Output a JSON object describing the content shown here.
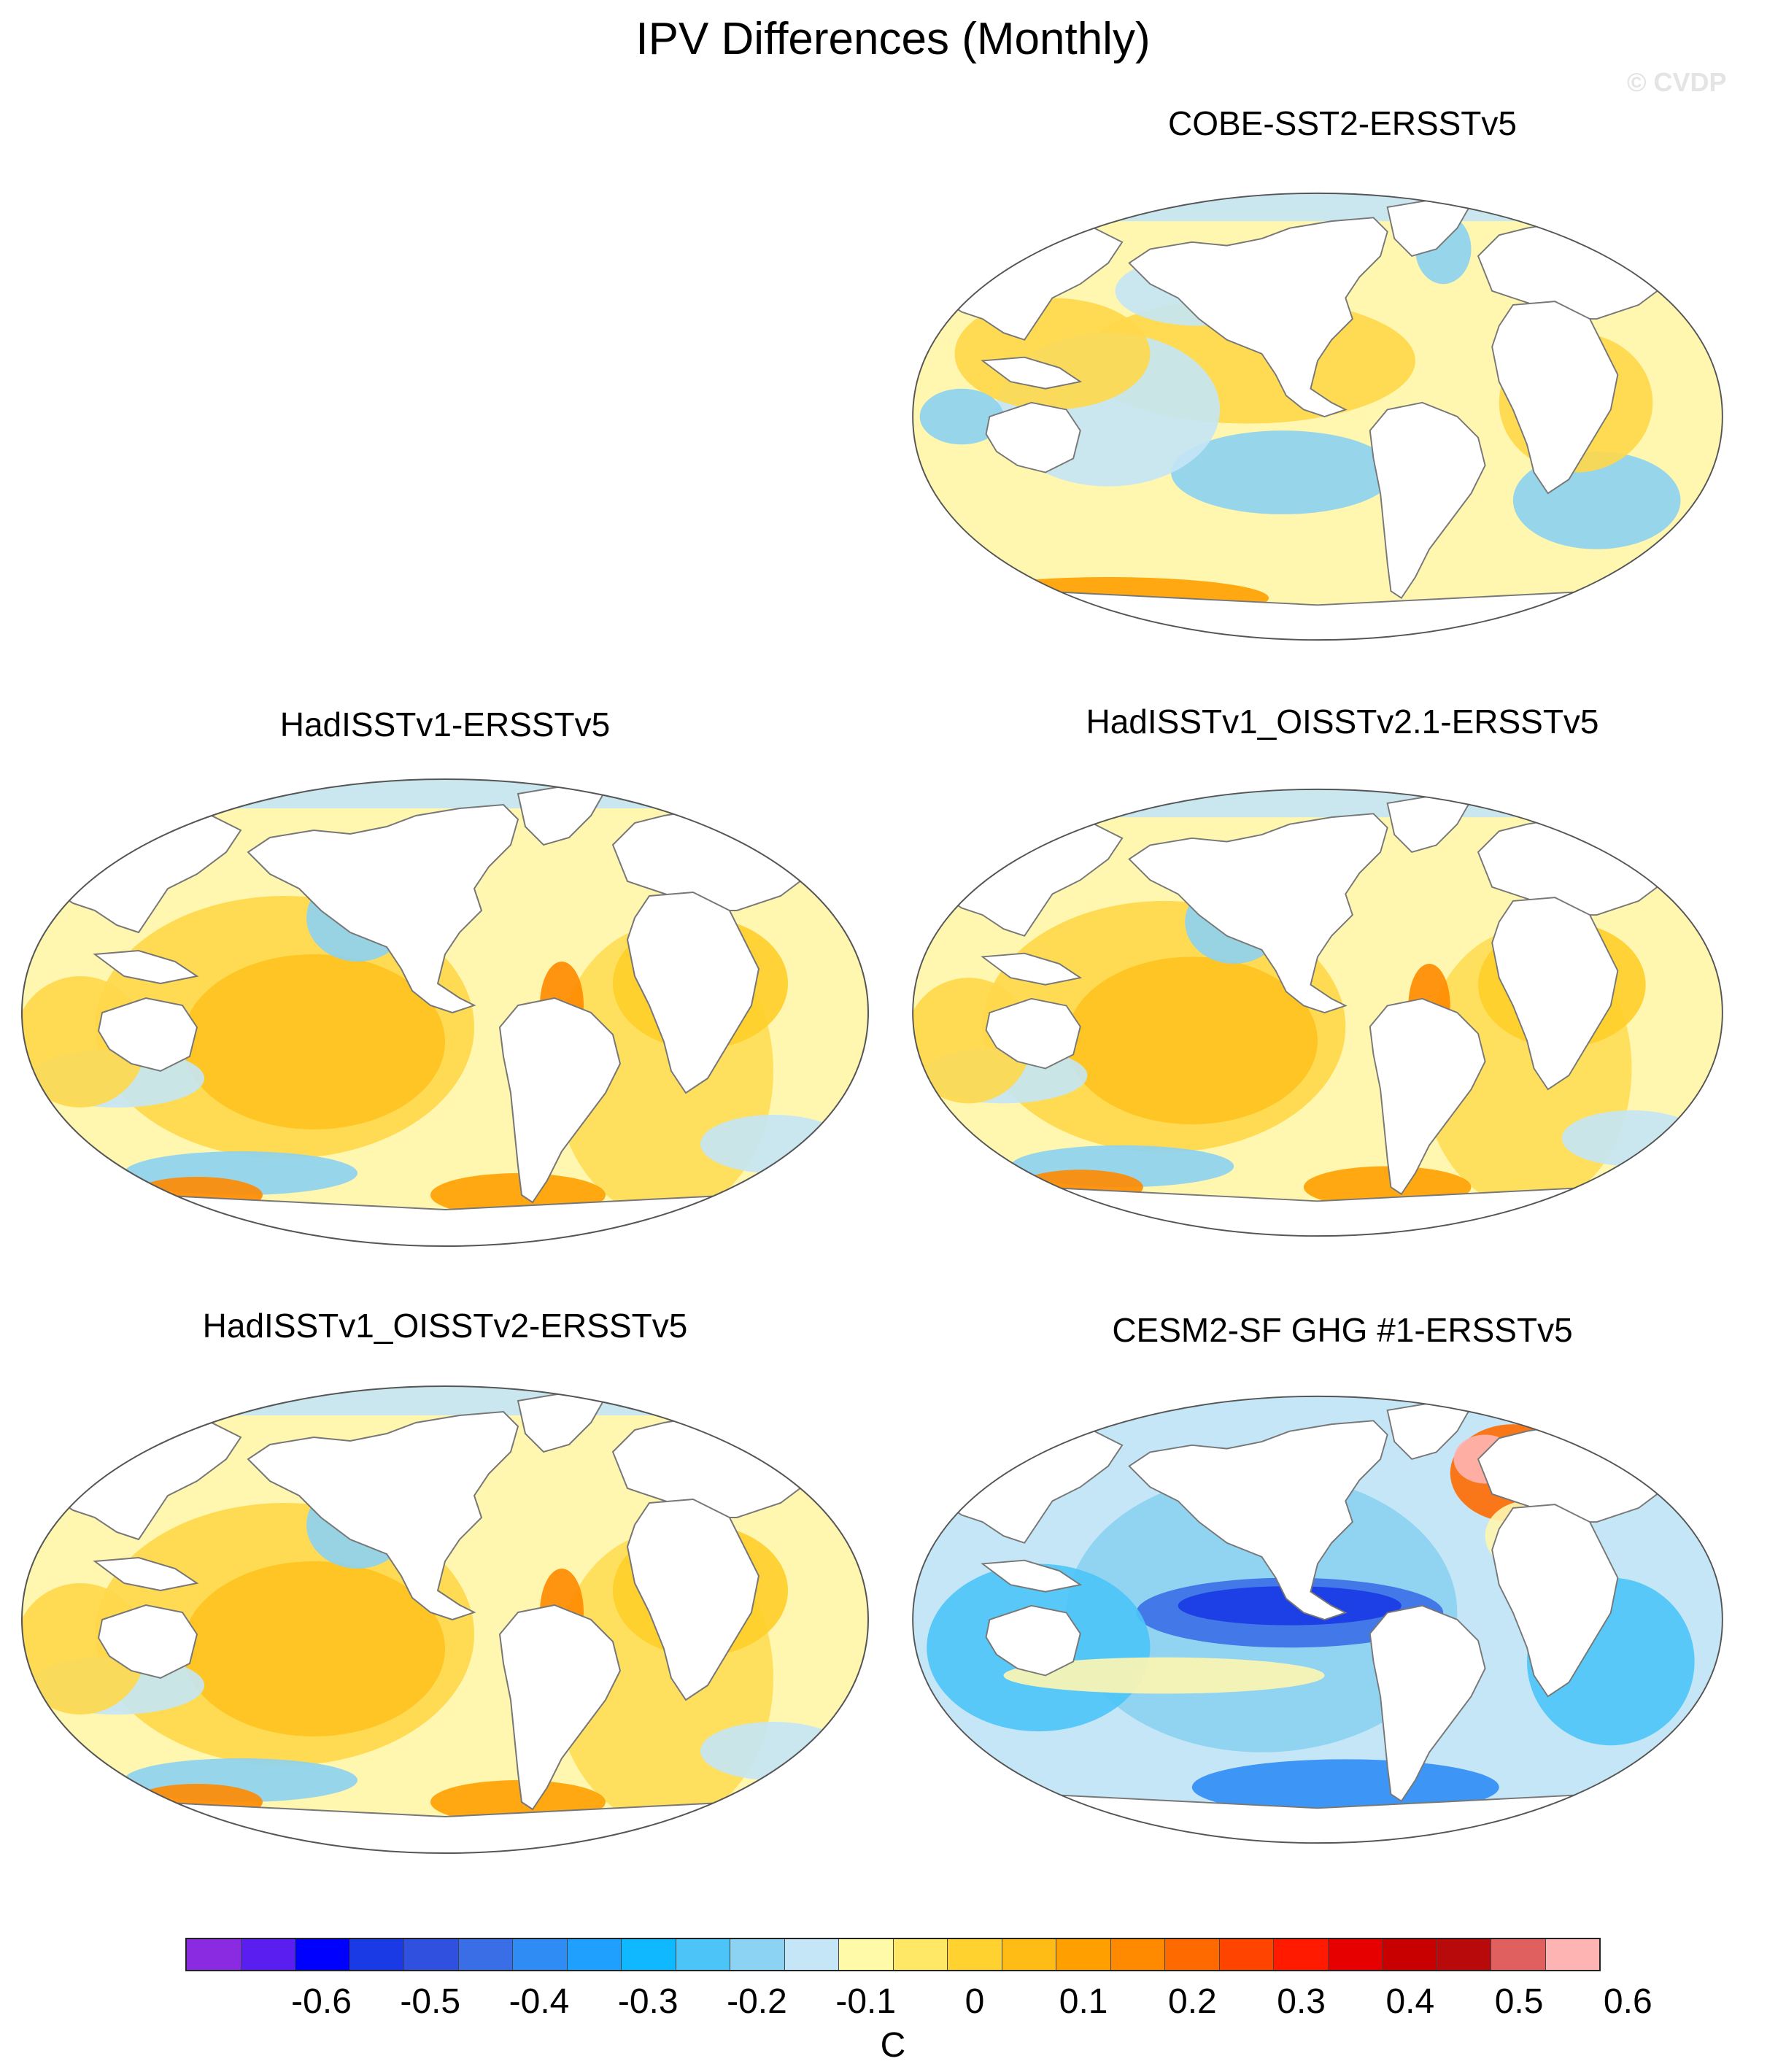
{
  "title": "IPV Differences (Monthly)",
  "watermark": "© CVDP",
  "panels": [
    {
      "id": "cobe",
      "title": "COBE-SST2-ERSSTv5",
      "pattern": "cobe"
    },
    {
      "id": "hadisst",
      "title": "HadISSTv1-ERSSTv5",
      "pattern": "warm"
    },
    {
      "id": "hadoi21",
      "title": "HadISSTv1_OISSTv2.1-ERSSTv5",
      "pattern": "warm"
    },
    {
      "id": "hadoi2",
      "title": "HadISSTv1_OISSTv2-ERSSTv5",
      "pattern": "warm"
    },
    {
      "id": "cesm",
      "title": "CESM2-SF GHG #1-ERSSTv5",
      "pattern": "cesm"
    }
  ],
  "colorbar": {
    "units": "C",
    "colors": [
      "#8a2be2",
      "#5a1ff0",
      "#0000ff",
      "#1a3ae6",
      "#3050e0",
      "#3a6ee6",
      "#2f8cf5",
      "#1fa0ff",
      "#10b8ff",
      "#4cc4f8",
      "#8cd2f2",
      "#c4e6f6",
      "#fffaa8",
      "#ffe866",
      "#ffd230",
      "#ffbc14",
      "#ffa000",
      "#ff8a00",
      "#ff6a00",
      "#ff4400",
      "#ff1a00",
      "#e60000",
      "#c80000",
      "#b80a0a",
      "#e06060",
      "#ffb4b4"
    ],
    "tick_labels": [
      "-0.6",
      "-0.5",
      "-0.4",
      "-0.3",
      "-0.2",
      "-0.1",
      "0",
      "0.1",
      "0.2",
      "0.3",
      "0.4",
      "0.5",
      "0.6"
    ]
  }
}
